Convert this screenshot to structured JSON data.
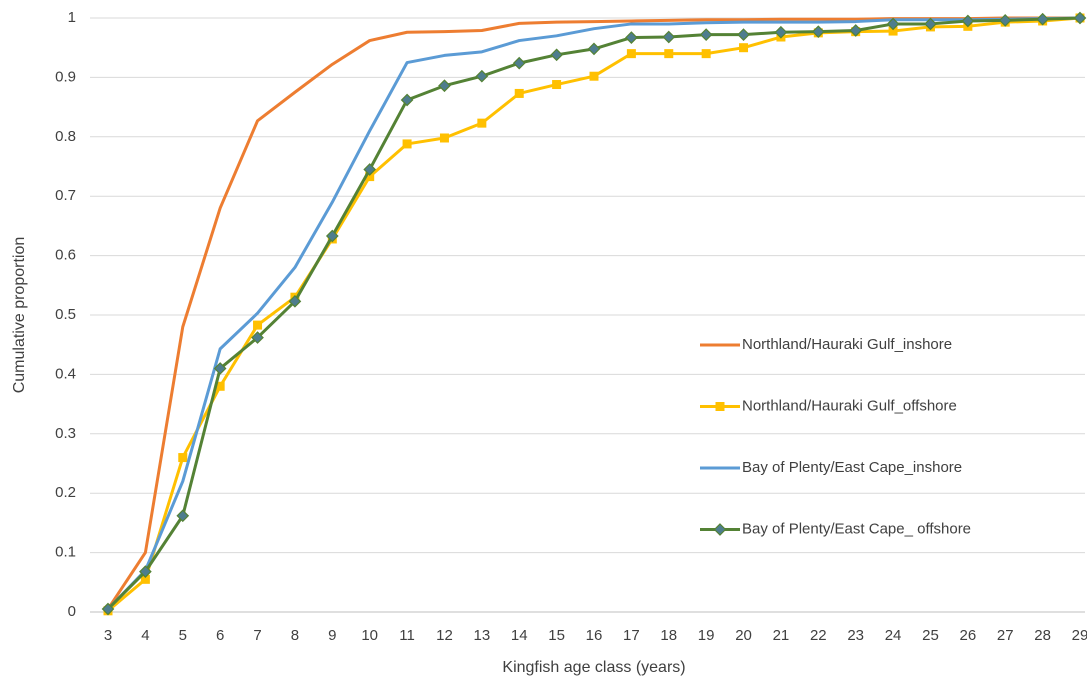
{
  "chart_data": {
    "type": "line",
    "x_label": "Kingfish age class (years)",
    "y_label": "Cumulative proportion",
    "categories": [
      "3",
      "4",
      "5",
      "6",
      "7",
      "8",
      "9",
      "10",
      "11",
      "12",
      "13",
      "14",
      "15",
      "16",
      "17",
      "18",
      "19",
      "20",
      "21",
      "22",
      "23",
      "24",
      "25",
      "26",
      "27",
      "28",
      "29"
    ],
    "ylim": [
      0,
      1
    ],
    "yticks": [
      0,
      0.1,
      0.2,
      0.3,
      0.4,
      0.5,
      0.6,
      0.7,
      0.8,
      0.9,
      1
    ],
    "grid": true,
    "legend_position": "right",
    "series": [
      {
        "name": "Northland/Hauraki Gulf_inshore",
        "color": "#ed7d31",
        "marker": "none",
        "values": [
          0.005,
          0.1,
          0.48,
          0.68,
          0.827,
          0.875,
          0.922,
          0.962,
          0.976,
          0.977,
          0.979,
          0.991,
          0.993,
          0.994,
          0.995,
          0.996,
          0.997,
          0.997,
          0.998,
          0.998,
          0.998,
          0.999,
          0.999,
          0.999,
          1,
          1,
          1
        ]
      },
      {
        "name": "Northland/Hauraki Gulf_offshore",
        "color": "#ffc000",
        "marker": "square",
        "marker_color": "#ffc000",
        "values": [
          0.002,
          0.055,
          0.26,
          0.38,
          0.483,
          0.53,
          0.628,
          0.733,
          0.788,
          0.798,
          0.823,
          0.873,
          0.888,
          0.902,
          0.94,
          0.94,
          0.94,
          0.95,
          0.968,
          0.975,
          0.977,
          0.978,
          0.985,
          0.986,
          0.993,
          0.995,
          1
        ]
      },
      {
        "name": "Bay of Plenty/East Cape_inshore",
        "color": "#5b9bd5",
        "marker": "none",
        "values": [
          0.005,
          0.07,
          0.22,
          0.443,
          0.503,
          0.58,
          0.69,
          0.81,
          0.925,
          0.937,
          0.943,
          0.962,
          0.97,
          0.982,
          0.99,
          0.99,
          0.992,
          0.993,
          0.993,
          0.993,
          0.994,
          0.997,
          0.997,
          0.997,
          0.998,
          0.999,
          1
        ]
      },
      {
        "name": "Bay of Plenty/East Cape_ offshore",
        "color": "#548235",
        "marker": "diamond",
        "marker_color": "#4e7d8e",
        "values": [
          0.005,
          0.068,
          0.162,
          0.41,
          0.462,
          0.523,
          0.633,
          0.745,
          0.862,
          0.886,
          0.902,
          0.924,
          0.938,
          0.948,
          0.967,
          0.968,
          0.972,
          0.972,
          0.976,
          0.977,
          0.979,
          0.99,
          0.99,
          0.995,
          0.996,
          0.998,
          1
        ]
      }
    ]
  }
}
